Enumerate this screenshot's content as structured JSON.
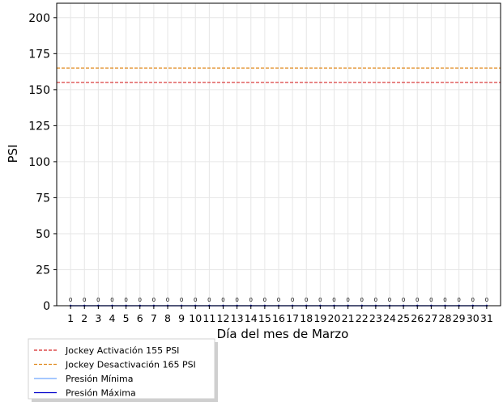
{
  "chart_data": {
    "type": "line",
    "title": "",
    "xlabel": "Día del mes de  Marzo",
    "ylabel": "PSI",
    "x": [
      1,
      2,
      3,
      4,
      5,
      6,
      7,
      8,
      9,
      10,
      11,
      12,
      13,
      14,
      15,
      16,
      17,
      18,
      19,
      20,
      21,
      22,
      23,
      24,
      25,
      26,
      27,
      28,
      29,
      30,
      31
    ],
    "ylim": [
      0,
      210
    ],
    "yticks": [
      0,
      25,
      50,
      75,
      100,
      125,
      150,
      175,
      200
    ],
    "xlim": [
      0,
      32
    ],
    "grid": true,
    "point_labels": [
      "0",
      "0",
      "0",
      "0",
      "0",
      "0",
      "0",
      "0",
      "0",
      "0",
      "0",
      "0",
      "0",
      "0",
      "0",
      "0",
      "0",
      "0",
      "0",
      "0",
      "0",
      "0",
      "0",
      "0",
      "0",
      "0",
      "0",
      "0",
      "0",
      "0",
      "0"
    ],
    "hlines": [
      {
        "name": "Jockey Activación 155 PSI",
        "value": 155,
        "color": "#d62728",
        "style": "dashed"
      },
      {
        "name": "Jockey Desactivación 165 PSI",
        "value": 165,
        "color": "#e08a1e",
        "style": "dashed"
      }
    ],
    "series": [
      {
        "name": "Presión Mínima",
        "color": "#6fa8ff",
        "values": [
          0,
          0,
          0,
          0,
          0,
          0,
          0,
          0,
          0,
          0,
          0,
          0,
          0,
          0,
          0,
          0,
          0,
          0,
          0,
          0,
          0,
          0,
          0,
          0,
          0,
          0,
          0,
          0,
          0,
          0,
          0
        ]
      },
      {
        "name": "Presión Máxima",
        "color": "#0000cc",
        "values": [
          0,
          0,
          0,
          0,
          0,
          0,
          0,
          0,
          0,
          0,
          0,
          0,
          0,
          0,
          0,
          0,
          0,
          0,
          0,
          0,
          0,
          0,
          0,
          0,
          0,
          0,
          0,
          0,
          0,
          0,
          0
        ]
      }
    ],
    "legend": {
      "position": "below-left",
      "entries": [
        {
          "label": "Jockey Activación 155 PSI",
          "color": "#d62728",
          "style": "dashed"
        },
        {
          "label": "Jockey Desactivación 165 PSI",
          "color": "#e08a1e",
          "style": "dashed"
        },
        {
          "label": "Presión Mínima",
          "color": "#6fa8ff",
          "style": "solid"
        },
        {
          "label": "Presión Máxima",
          "color": "#0000cc",
          "style": "solid"
        }
      ]
    }
  }
}
